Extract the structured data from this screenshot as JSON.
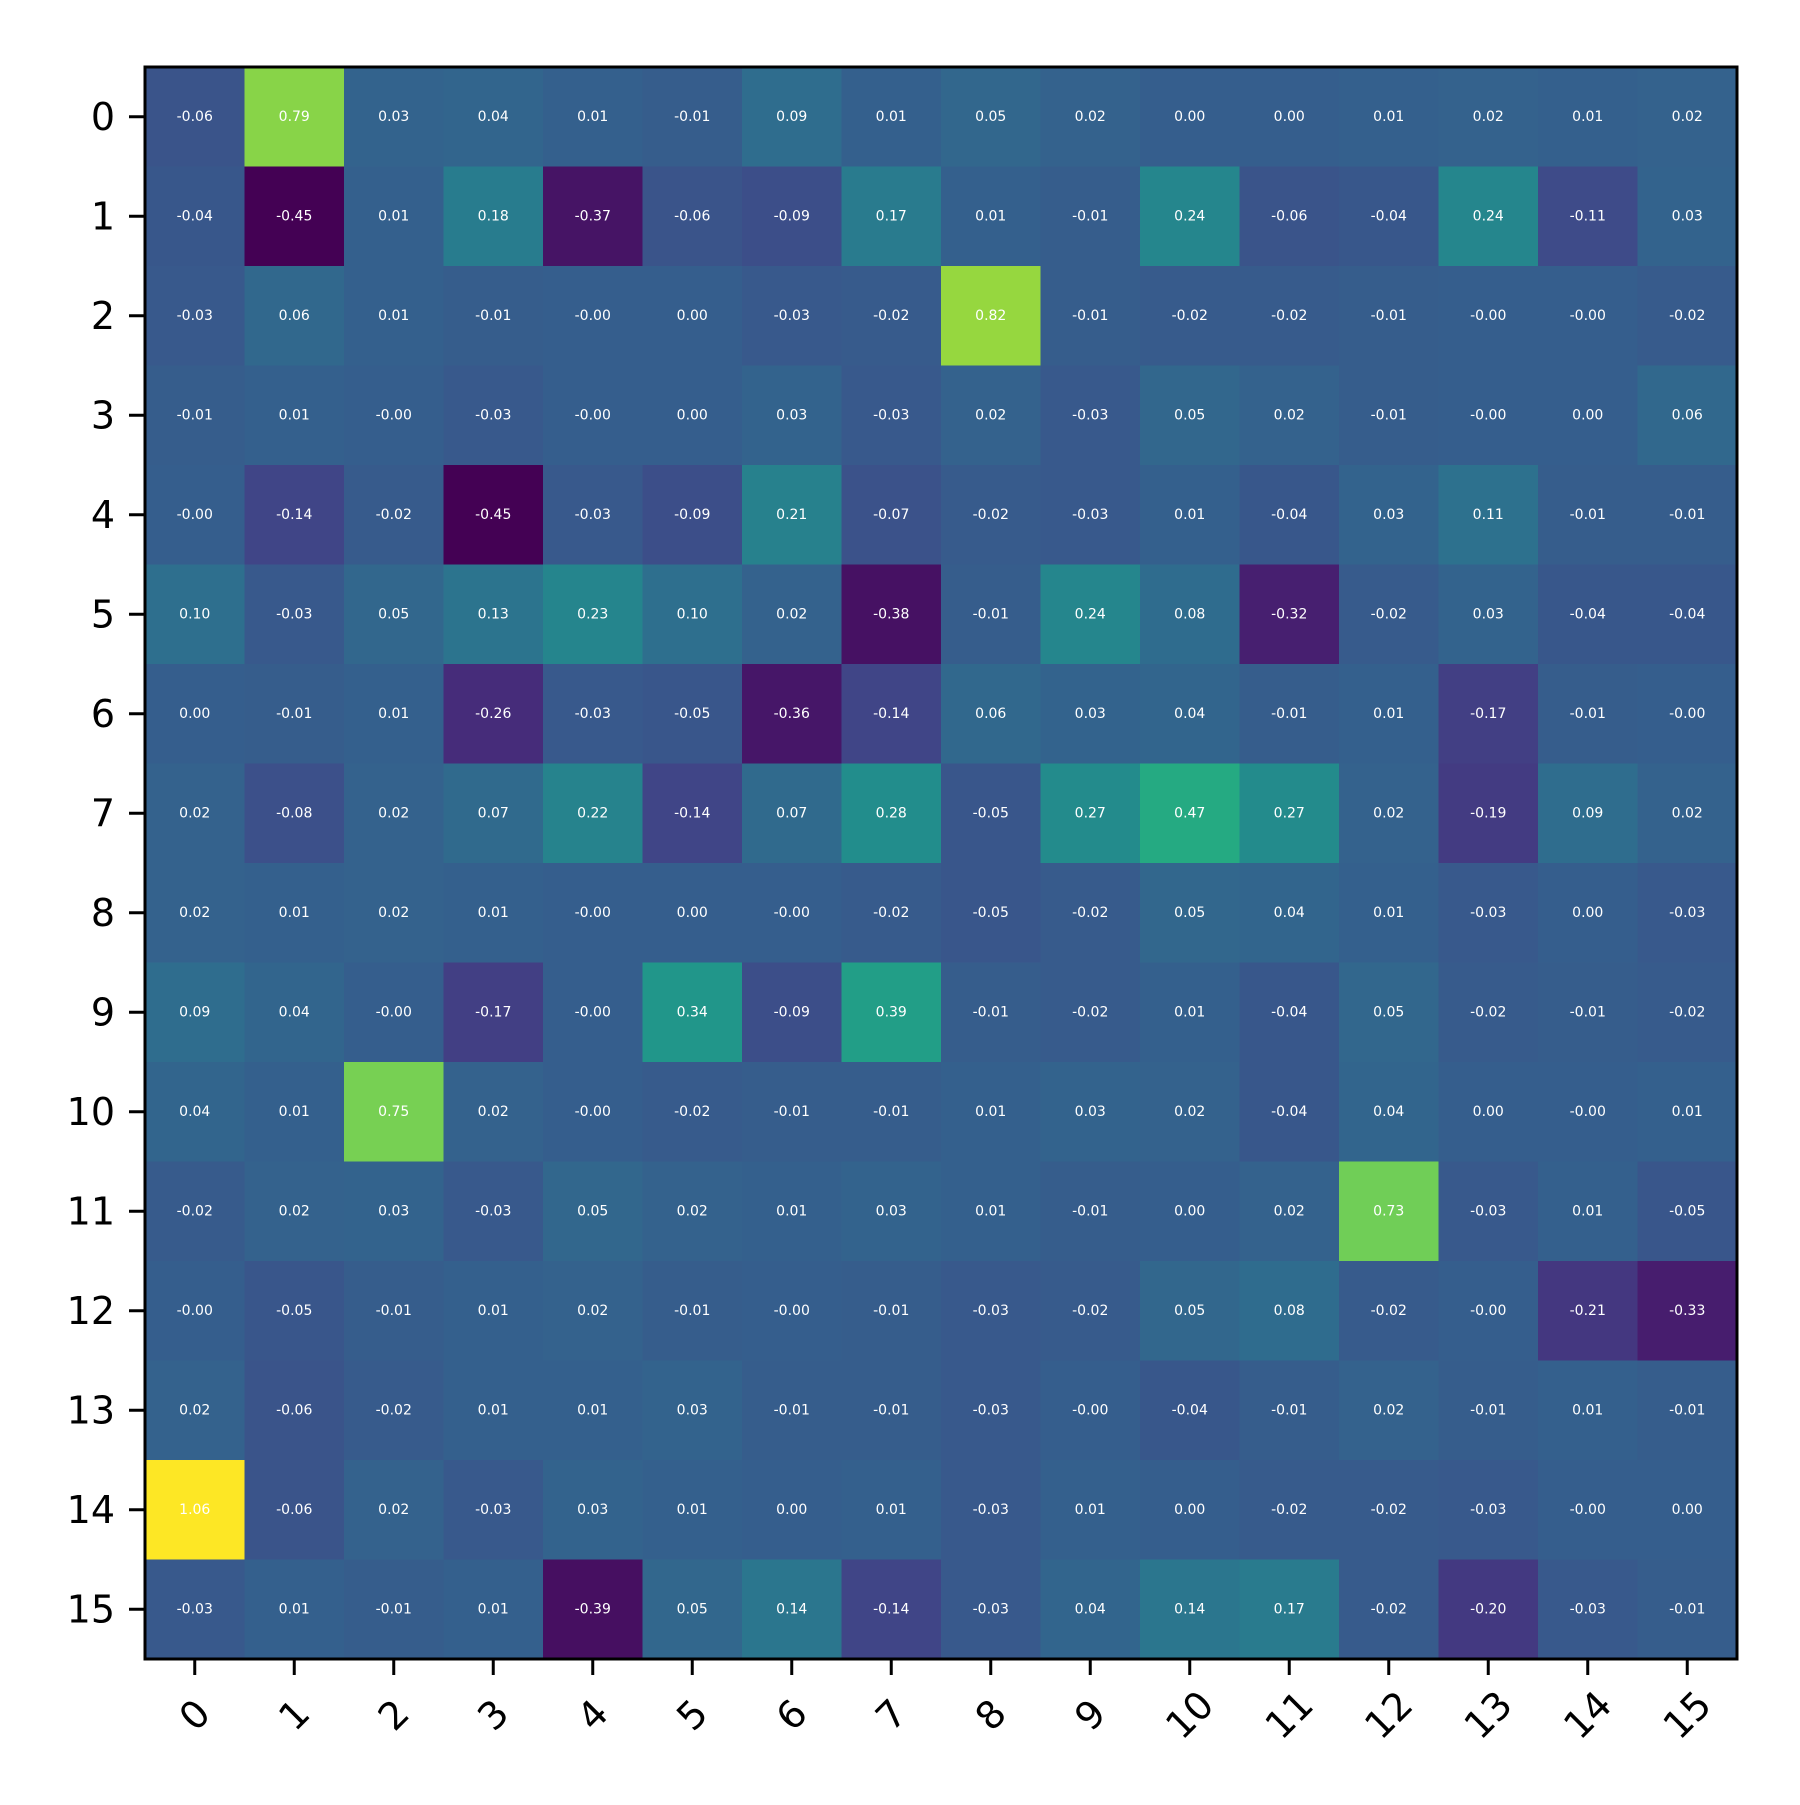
{
  "chart_data": {
    "type": "heatmap",
    "title": "",
    "xlabel": "",
    "ylabel": "",
    "x_categories": [
      "0",
      "1",
      "2",
      "3",
      "4",
      "5",
      "6",
      "7",
      "8",
      "9",
      "10",
      "11",
      "12",
      "13",
      "14",
      "15"
    ],
    "y_categories": [
      "0",
      "1",
      "2",
      "3",
      "4",
      "5",
      "6",
      "7",
      "8",
      "9",
      "10",
      "11",
      "12",
      "13",
      "14",
      "15"
    ],
    "colormap": "viridis",
    "value_range": [
      -0.45,
      1.06
    ],
    "colorbar": false,
    "grid": false,
    "x_tick_rotation_deg": 45,
    "values": [
      [
        -0.06,
        0.79,
        0.03,
        0.04,
        0.01,
        -0.01,
        0.09,
        0.01,
        0.05,
        0.02,
        0.0,
        0.0,
        0.01,
        0.02,
        0.01,
        0.02
      ],
      [
        -0.04,
        -0.45,
        0.01,
        0.18,
        -0.37,
        -0.06,
        -0.09,
        0.17,
        0.01,
        -0.01,
        0.24,
        -0.06,
        -0.04,
        0.24,
        -0.11,
        0.03
      ],
      [
        -0.03,
        0.06,
        0.01,
        -0.01,
        -0.0,
        0.0,
        -0.03,
        -0.02,
        0.82,
        -0.01,
        -0.02,
        -0.02,
        -0.01,
        -0.0,
        -0.0,
        -0.02
      ],
      [
        -0.01,
        0.01,
        -0.0,
        -0.03,
        -0.0,
        0.0,
        0.03,
        -0.03,
        0.02,
        -0.03,
        0.05,
        0.02,
        -0.01,
        -0.0,
        0.0,
        0.06
      ],
      [
        -0.0,
        -0.14,
        -0.02,
        -0.45,
        -0.03,
        -0.09,
        0.21,
        -0.07,
        -0.02,
        -0.03,
        0.01,
        -0.04,
        0.03,
        0.11,
        -0.01,
        -0.01
      ],
      [
        0.1,
        -0.03,
        0.05,
        0.13,
        0.23,
        0.1,
        0.02,
        -0.38,
        -0.01,
        0.24,
        0.08,
        -0.32,
        -0.02,
        0.03,
        -0.04,
        -0.04
      ],
      [
        0.0,
        -0.01,
        0.01,
        -0.26,
        -0.03,
        -0.05,
        -0.36,
        -0.14,
        0.06,
        0.03,
        0.04,
        -0.01,
        0.01,
        -0.17,
        -0.01,
        -0.0
      ],
      [
        0.02,
        -0.08,
        0.02,
        0.07,
        0.22,
        -0.14,
        0.07,
        0.28,
        -0.05,
        0.27,
        0.47,
        0.27,
        0.02,
        -0.19,
        0.09,
        0.02
      ],
      [
        0.02,
        0.01,
        0.02,
        0.01,
        -0.0,
        0.0,
        -0.0,
        -0.02,
        -0.05,
        -0.02,
        0.05,
        0.04,
        0.01,
        -0.03,
        0.0,
        -0.03
      ],
      [
        0.09,
        0.04,
        -0.0,
        -0.17,
        -0.0,
        0.34,
        -0.09,
        0.39,
        -0.01,
        -0.02,
        0.01,
        -0.04,
        0.05,
        -0.02,
        -0.01,
        -0.02
      ],
      [
        0.04,
        0.01,
        0.75,
        0.02,
        -0.0,
        -0.02,
        -0.01,
        -0.01,
        0.01,
        0.03,
        0.02,
        -0.04,
        0.04,
        0.0,
        -0.0,
        0.01
      ],
      [
        -0.02,
        0.02,
        0.03,
        -0.03,
        0.05,
        0.02,
        0.01,
        0.03,
        0.01,
        -0.01,
        0.0,
        0.02,
        0.73,
        -0.03,
        0.01,
        -0.05
      ],
      [
        -0.0,
        -0.05,
        -0.01,
        0.01,
        0.02,
        -0.01,
        -0.0,
        -0.01,
        -0.03,
        -0.02,
        0.05,
        0.08,
        -0.02,
        -0.0,
        -0.21,
        -0.33
      ],
      [
        0.02,
        -0.06,
        -0.02,
        0.01,
        0.01,
        0.03,
        -0.01,
        -0.01,
        -0.03,
        -0.0,
        -0.04,
        -0.01,
        0.02,
        -0.01,
        0.01,
        -0.01
      ],
      [
        1.06,
        -0.06,
        0.02,
        -0.03,
        0.03,
        0.01,
        0.0,
        0.01,
        -0.03,
        0.01,
        0.0,
        -0.02,
        -0.02,
        -0.03,
        -0.0,
        0.0
      ],
      [
        -0.03,
        0.01,
        -0.01,
        0.01,
        -0.39,
        0.05,
        0.14,
        -0.14,
        -0.03,
        0.04,
        0.14,
        0.17,
        -0.02,
        -0.2,
        -0.03,
        -0.01
      ]
    ],
    "cell_labels": [
      [
        "-0.06",
        "0.79",
        "0.03",
        "0.04",
        "0.01",
        "-0.01",
        "0.09",
        "0.01",
        "0.05",
        "0.02",
        "0.00",
        "0.00",
        "0.01",
        "0.02",
        "0.01",
        "0.02"
      ],
      [
        "-0.04",
        "-0.45",
        "0.01",
        "0.18",
        "-0.37",
        "-0.06",
        "-0.09",
        "0.17",
        "0.01",
        "-0.01",
        "0.24",
        "-0.06",
        "-0.04",
        "0.24",
        "-0.11",
        "0.03"
      ],
      [
        "-0.03",
        "0.06",
        "0.01",
        "-0.01",
        "-0.00",
        "0.00",
        "-0.03",
        "-0.02",
        "0.82",
        "-0.01",
        "-0.02",
        "-0.02",
        "-0.01",
        "-0.00",
        "-0.00",
        "-0.02"
      ],
      [
        "-0.01",
        "0.01",
        "-0.00",
        "-0.03",
        "-0.00",
        "0.00",
        "0.03",
        "-0.03",
        "0.02",
        "-0.03",
        "0.05",
        "0.02",
        "-0.01",
        "-0.00",
        "0.00",
        "0.06"
      ],
      [
        "-0.00",
        "-0.14",
        "-0.02",
        "-0.45",
        "-0.03",
        "-0.09",
        "0.21",
        "-0.07",
        "-0.02",
        "-0.03",
        "0.01",
        "-0.04",
        "0.03",
        "0.11",
        "-0.01",
        "-0.01"
      ],
      [
        "0.10",
        "-0.03",
        "0.05",
        "0.13",
        "0.23",
        "0.10",
        "0.02",
        "-0.38",
        "-0.01",
        "0.24",
        "0.08",
        "-0.32",
        "-0.02",
        "0.03",
        "-0.04",
        "-0.04"
      ],
      [
        "0.00",
        "-0.01",
        "0.01",
        "-0.26",
        "-0.03",
        "-0.05",
        "-0.36",
        "-0.14",
        "0.06",
        "0.03",
        "0.04",
        "-0.01",
        "0.01",
        "-0.17",
        "-0.01",
        "-0.00"
      ],
      [
        "0.02",
        "-0.08",
        "0.02",
        "0.07",
        "0.22",
        "-0.14",
        "0.07",
        "0.28",
        "-0.05",
        "0.27",
        "0.47",
        "0.27",
        "0.02",
        "-0.19",
        "0.09",
        "0.02"
      ],
      [
        "0.02",
        "0.01",
        "0.02",
        "0.01",
        "-0.00",
        "0.00",
        "-0.00",
        "-0.02",
        "-0.05",
        "-0.02",
        "0.05",
        "0.04",
        "0.01",
        "-0.03",
        "0.00",
        "-0.03"
      ],
      [
        "0.09",
        "0.04",
        "-0.00",
        "-0.17",
        "-0.00",
        "0.34",
        "-0.09",
        "0.39",
        "-0.01",
        "-0.02",
        "0.01",
        "-0.04",
        "0.05",
        "-0.02",
        "-0.01",
        "-0.02"
      ],
      [
        "0.04",
        "0.01",
        "0.75",
        "0.02",
        "-0.00",
        "-0.02",
        "-0.01",
        "-0.01",
        "0.01",
        "0.03",
        "0.02",
        "-0.04",
        "0.04",
        "0.00",
        "-0.00",
        "0.01"
      ],
      [
        "-0.02",
        "0.02",
        "0.03",
        "-0.03",
        "0.05",
        "0.02",
        "0.01",
        "0.03",
        "0.01",
        "-0.01",
        "0.00",
        "0.02",
        "0.73",
        "-0.03",
        "0.01",
        "-0.05"
      ],
      [
        "-0.00",
        "-0.05",
        "-0.01",
        "0.01",
        "0.02",
        "-0.01",
        "-0.00",
        "-0.01",
        "-0.03",
        "-0.02",
        "0.05",
        "0.08",
        "-0.02",
        "-0.00",
        "-0.21",
        "-0.33"
      ],
      [
        "0.02",
        "-0.06",
        "-0.02",
        "0.01",
        "0.01",
        "0.03",
        "-0.01",
        "-0.01",
        "-0.03",
        "-0.00",
        "-0.04",
        "-0.01",
        "0.02",
        "-0.01",
        "0.01",
        "-0.01"
      ],
      [
        "1.06",
        "-0.06",
        "0.02",
        "-0.03",
        "0.03",
        "0.01",
        "0.00",
        "0.01",
        "-0.03",
        "0.01",
        "0.00",
        "-0.02",
        "-0.02",
        "-0.03",
        "-0.00",
        "0.00"
      ],
      [
        "-0.03",
        "0.01",
        "-0.01",
        "0.01",
        "-0.39",
        "0.05",
        "0.14",
        "-0.14",
        "-0.03",
        "0.04",
        "0.14",
        "0.17",
        "-0.02",
        "-0.20",
        "-0.03",
        "-0.01"
      ]
    ]
  }
}
